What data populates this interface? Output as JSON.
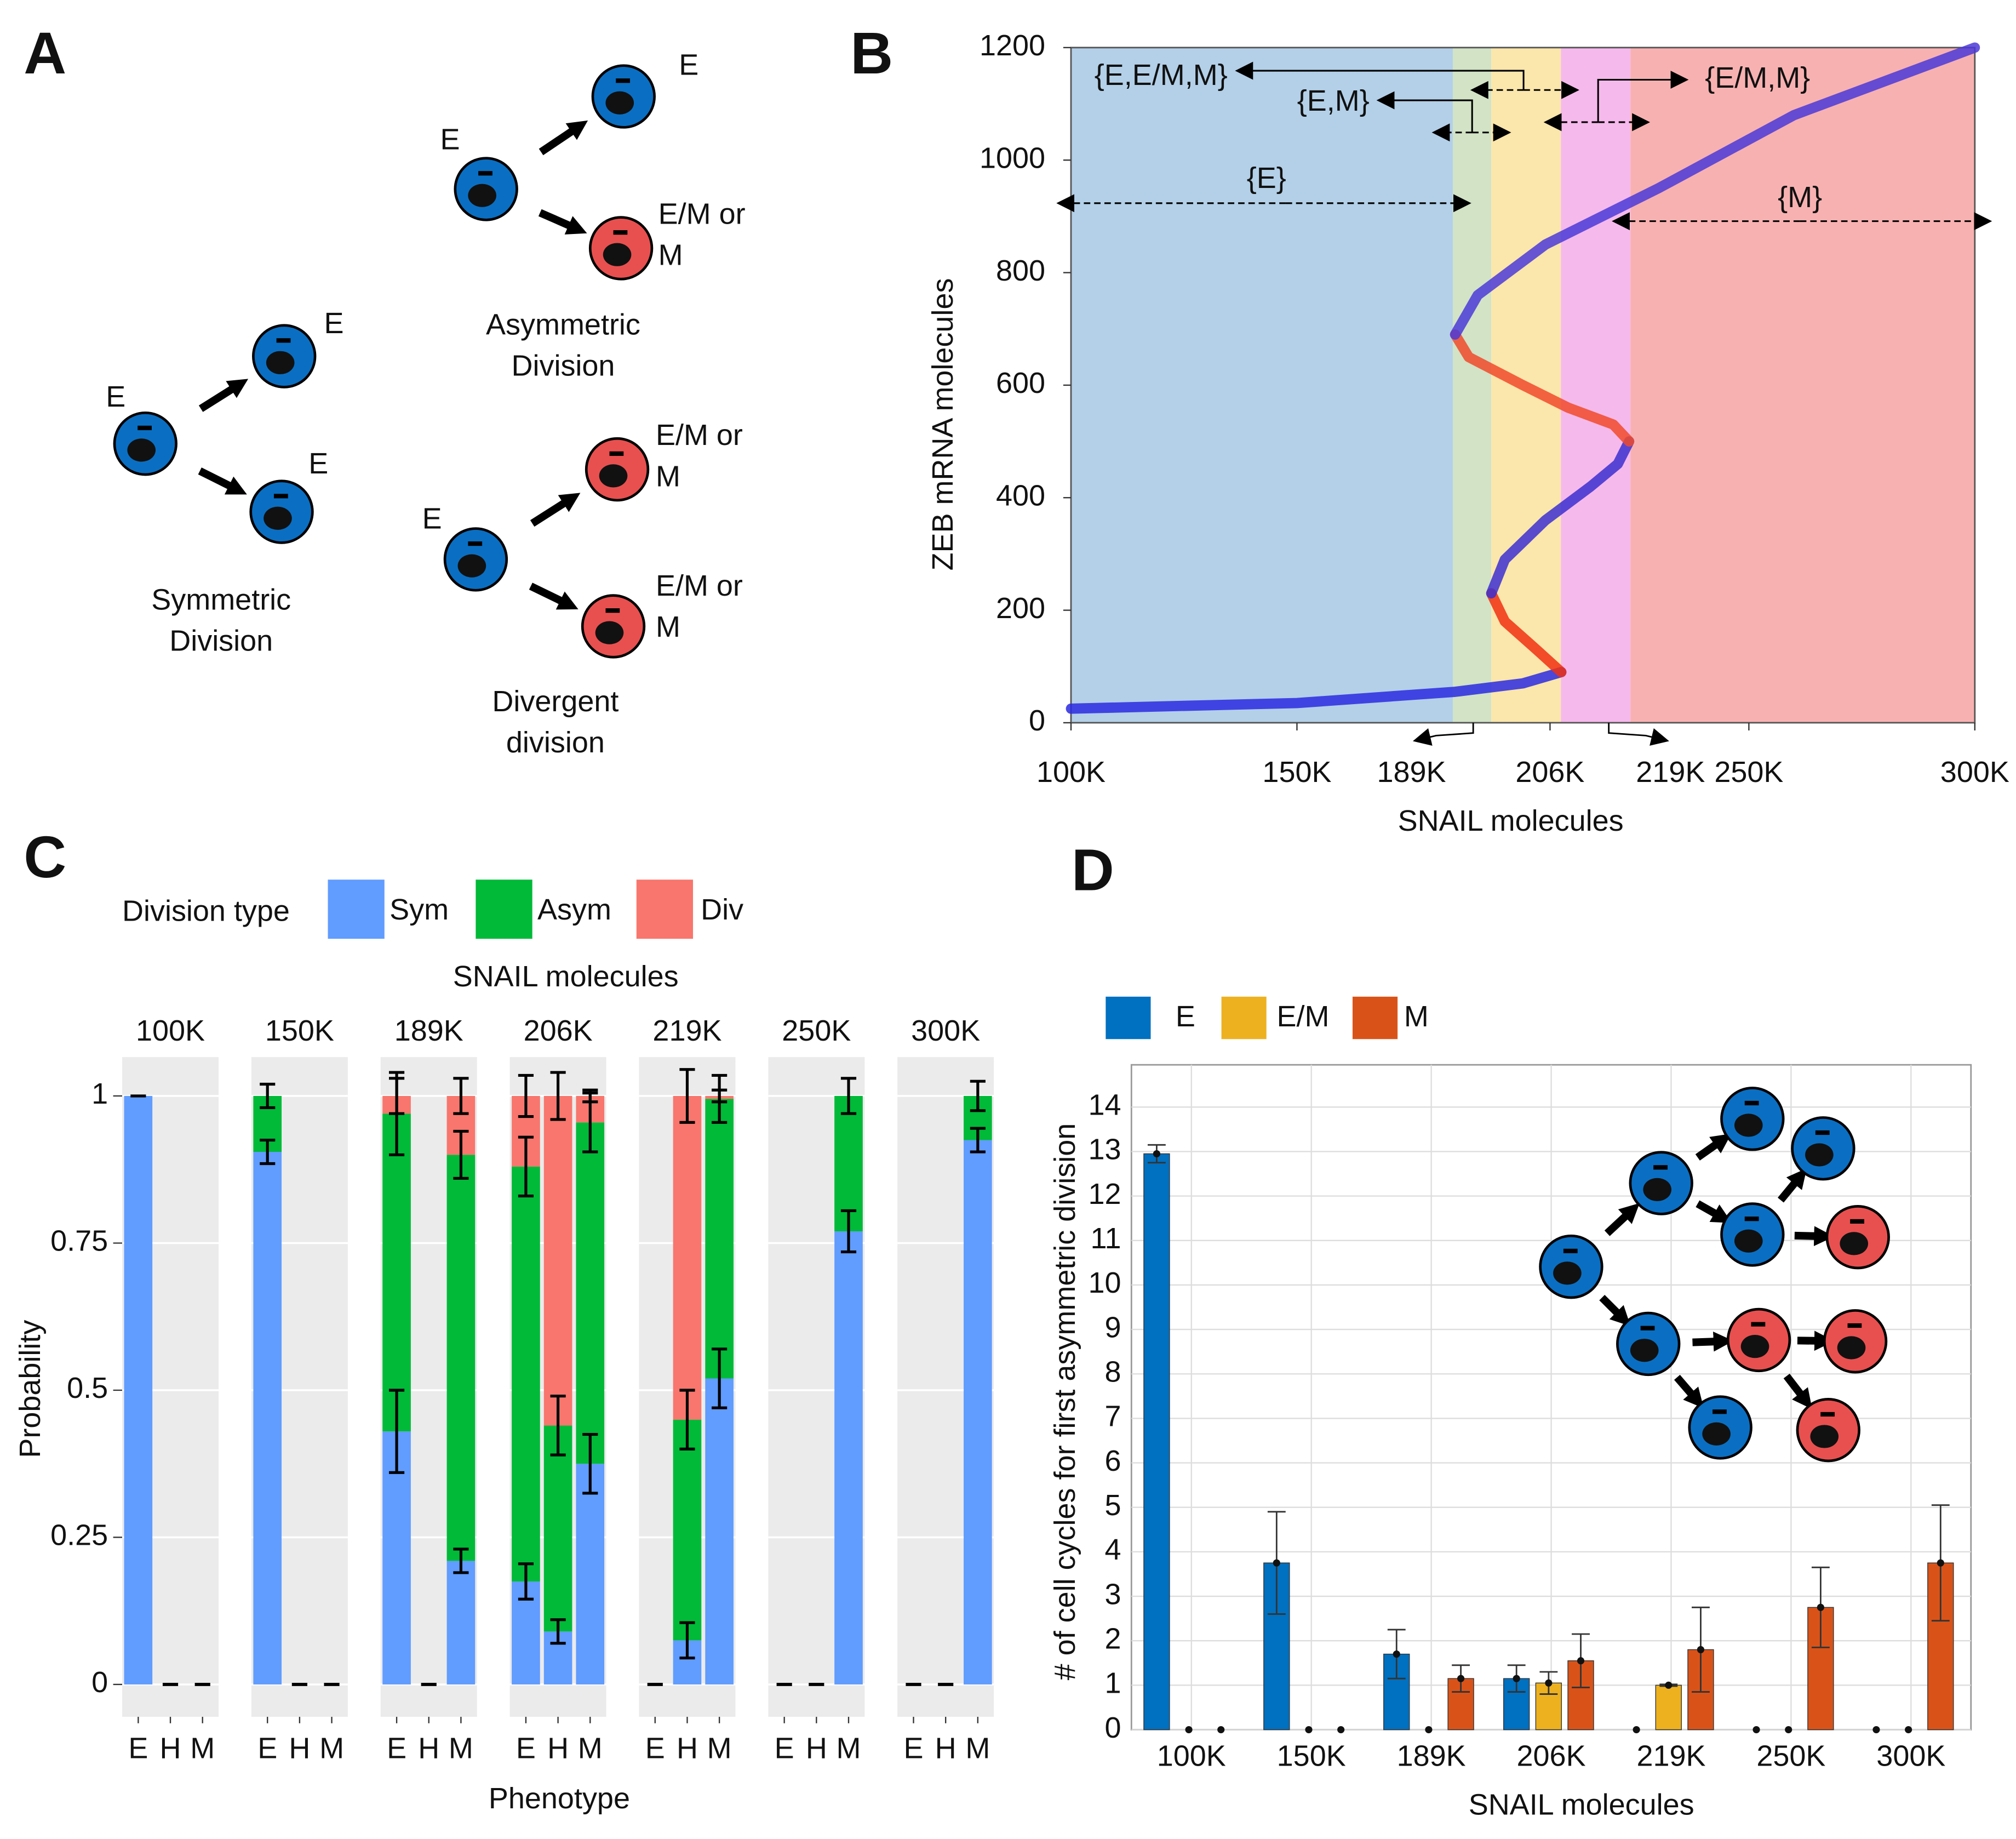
{
  "panel_a": {
    "label": "A",
    "diagrams": [
      {
        "title": [
          "Symmetric",
          "Division"
        ],
        "parent": "E",
        "children": [
          [
            "E"
          ],
          [
            "E"
          ]
        ]
      },
      {
        "title": [
          "Asymmetric",
          "Division"
        ],
        "parent": "E",
        "children": [
          [
            "E"
          ],
          [
            "E/M or",
            "M"
          ]
        ]
      },
      {
        "title": [
          "Divergent",
          "division"
        ],
        "parent": "E",
        "children": [
          [
            "E/M or",
            "M"
          ],
          [
            "E/M or",
            "M"
          ]
        ]
      }
    ]
  },
  "chart_data": [
    {
      "type": "line",
      "panel": "B",
      "xlabel": "SNAIL molecules",
      "ylabel": "ZEB mRNA molecules",
      "xlim": [
        100000,
        300000
      ],
      "ylim": [
        0,
        1200
      ],
      "xticks": [
        {
          "value": 100000,
          "label": "100K"
        },
        {
          "value": 150000,
          "label": "150K"
        },
        {
          "value": 189000,
          "label": "189K"
        },
        {
          "value": 206000,
          "label": "206K"
        },
        {
          "value": 219000,
          "label": "219K"
        },
        {
          "value": 250000,
          "label": "250K"
        },
        {
          "value": 300000,
          "label": "300K"
        }
      ],
      "yticks": [
        0,
        200,
        400,
        600,
        800,
        1000,
        1200
      ],
      "regions": [
        {
          "from": 100000,
          "to": 184500,
          "color": "#b3d0e8"
        },
        {
          "from": 184500,
          "to": 193000,
          "color": "#d2e3c6"
        },
        {
          "from": 193000,
          "to": 208400,
          "color": "#fbe6ab"
        },
        {
          "from": 208400,
          "to": 223800,
          "color": "#f6b9ec"
        },
        {
          "from": 223800,
          "to": 300000,
          "color": "#f8b1b1"
        }
      ],
      "annotations": [
        "{E,E/M,M}",
        "{E,M}",
        "{E/M,M}",
        "{E}",
        "{M}"
      ],
      "series": [
        {
          "color": "#2a2ae0",
          "x": [
            100000,
            150000,
            185000,
            200000,
            208500
          ],
          "values": [
            25,
            35,
            55,
            70,
            90
          ]
        },
        {
          "color": "#f03010",
          "x": [
            208500,
            203000,
            196000,
            193000
          ],
          "values": [
            90,
            130,
            180,
            230
          ]
        },
        {
          "color": "#3c2fd0",
          "x": [
            193000,
            196000,
            205000,
            215000,
            221000,
            223500
          ],
          "values": [
            230,
            290,
            360,
            420,
            460,
            500
          ]
        },
        {
          "color": "#f04a2a",
          "x": [
            223500,
            220000,
            210000,
            200000,
            188000,
            185000
          ],
          "values": [
            500,
            530,
            560,
            600,
            650,
            690
          ]
        },
        {
          "color": "#4b3ad8",
          "x": [
            185000,
            190000,
            205000,
            230000,
            260000,
            300000
          ],
          "values": [
            690,
            760,
            850,
            950,
            1080,
            1200
          ]
        }
      ]
    },
    {
      "type": "stacked_bar",
      "panel": "C",
      "legend_title": "Division type",
      "facet_title": "SNAIL molecules",
      "xlabel": "Phenotype",
      "ylabel": "Probability",
      "facets": [
        "100K",
        "150K",
        "189K",
        "206K",
        "219K",
        "250K",
        "300K"
      ],
      "categories": [
        "E",
        "H",
        "M"
      ],
      "ylim": [
        -0.055,
        1.066
      ],
      "yticks": [
        0,
        0.25,
        0.5,
        0.75,
        1
      ],
      "grid": true,
      "series": [
        {
          "name": "Sym",
          "color": "#619cff",
          "values": [
            [
              1,
              0,
              0
            ],
            [
              0.905,
              0,
              0
            ],
            [
              0.43,
              0,
              0.21
            ],
            [
              0.175,
              0.09,
              0.375
            ],
            [
              0,
              0.075,
              0.52
            ],
            [
              0,
              0,
              0.77
            ],
            [
              0,
              0,
              0.925
            ]
          ],
          "errors": [
            [
              0,
              0,
              0
            ],
            [
              0.02,
              0,
              0
            ],
            [
              0.07,
              0,
              0.02
            ],
            [
              0.03,
              0.02,
              0.05
            ],
            [
              0,
              0.03,
              0.05
            ],
            [
              0,
              0,
              0.035
            ],
            [
              0,
              0,
              0.02
            ]
          ]
        },
        {
          "name": "Asym",
          "color": "#00ba38",
          "values": [
            [
              0,
              0,
              0
            ],
            [
              0.095,
              0,
              0
            ],
            [
              0.54,
              0,
              0.69
            ],
            [
              0.705,
              0.35,
              0.58
            ],
            [
              0,
              0.375,
              0.475
            ],
            [
              0,
              0,
              0.23
            ],
            [
              0,
              0,
              0.075
            ]
          ],
          "errors": [
            [
              0,
              0,
              0
            ],
            [
              0.02,
              0,
              0
            ],
            [
              0.07,
              0,
              0.04
            ],
            [
              0.05,
              0.05,
              0.05
            ],
            [
              0,
              0.05,
              0.04
            ],
            [
              0,
              0,
              0.03
            ],
            [
              0,
              0,
              0.025
            ]
          ]
        },
        {
          "name": "Div",
          "color": "#f8766d",
          "values": [
            [
              0,
              0,
              0
            ],
            [
              0,
              0,
              0
            ],
            [
              0.03,
              0,
              0.1
            ],
            [
              0.12,
              0.56,
              0.045
            ],
            [
              0,
              0.55,
              0.005
            ],
            [
              0,
              0,
              0
            ],
            [
              0,
              0,
              0
            ]
          ],
          "errors": [
            [
              0,
              0,
              0
            ],
            [
              0,
              0,
              0
            ],
            [
              0.03,
              0,
              0.03
            ],
            [
              0.035,
              0.04,
              0.01
            ],
            [
              0,
              0.045,
              0.01
            ],
            [
              0,
              0,
              0
            ],
            [
              0,
              0,
              0
            ]
          ]
        }
      ]
    },
    {
      "type": "bar",
      "panel": "D",
      "xlabel": "SNAIL molecules",
      "ylabel": "# of cell cycles for first asymmetric division",
      "categories": [
        "100K",
        "150K",
        "189K",
        "206K",
        "219K",
        "250K",
        "300K"
      ],
      "ylim": [
        0,
        14.95
      ],
      "yticks": [
        0,
        1,
        2,
        3,
        4,
        5,
        6,
        7,
        8,
        9,
        10,
        11,
        12,
        13,
        14
      ],
      "grid": true,
      "series": [
        {
          "name": "E",
          "color": "#0070c0",
          "values": [
            12.95,
            3.75,
            1.7,
            1.15,
            0,
            0,
            0
          ],
          "errors": [
            0.2,
            1.15,
            0.55,
            0.3,
            0,
            0,
            0
          ]
        },
        {
          "name": "E/M",
          "color": "#edb120",
          "values": [
            0,
            0,
            0,
            1.05,
            1.0,
            0,
            0
          ],
          "errors": [
            0,
            0,
            0,
            0.25,
            0.02,
            0,
            0
          ]
        },
        {
          "name": "M",
          "color": "#d95319",
          "values": [
            0,
            0,
            1.15,
            1.55,
            1.8,
            2.75,
            3.75
          ],
          "errors": [
            0,
            0,
            0.3,
            0.6,
            0.95,
            0.9,
            1.3
          ]
        }
      ]
    }
  ]
}
